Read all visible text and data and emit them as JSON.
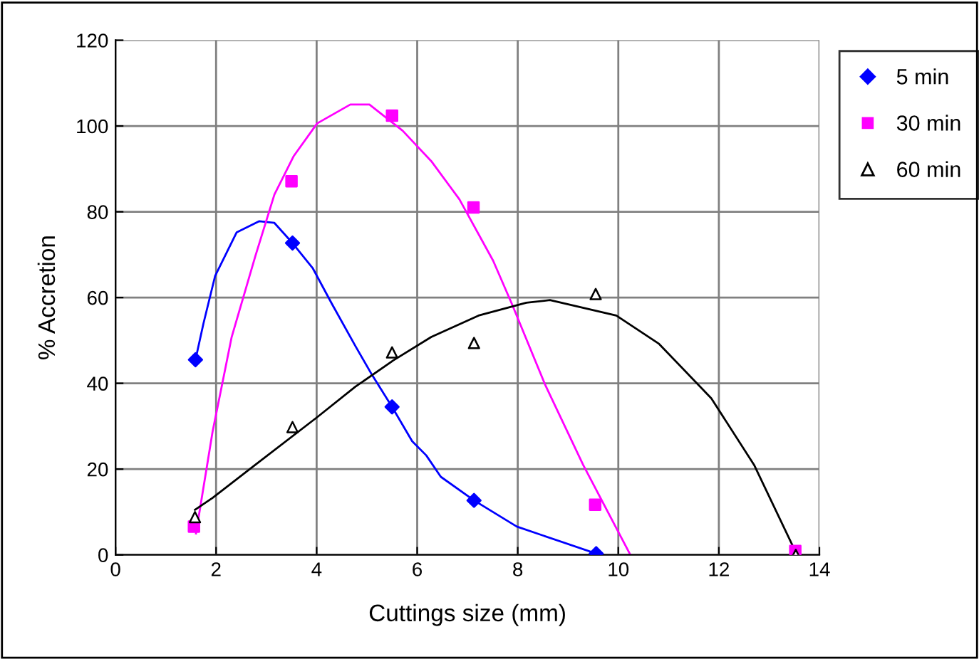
{
  "chart_data": {
    "type": "scatter",
    "xlabel": "Cuttings size (mm)",
    "ylabel": "% Accretion",
    "xlim": [
      0,
      14
    ],
    "xticks": [
      0,
      2,
      4,
      6,
      8,
      10,
      12,
      14
    ],
    "ylim": [
      0,
      120
    ],
    "yticks": [
      0,
      20,
      40,
      60,
      80,
      100,
      120
    ],
    "grid": true,
    "legend": "right",
    "series": [
      {
        "name": "5 min",
        "marker": "diamond",
        "color": "#0000ff",
        "x": [
          1.59,
          3.52,
          5.5,
          7.13,
          9.56
        ],
        "values": [
          45.5,
          72.7,
          34.5,
          12.7,
          0.3
        ]
      },
      {
        "name": "30 min",
        "marker": "square",
        "color": "#ff00ff",
        "x": [
          1.56,
          3.5,
          5.5,
          7.12,
          9.54,
          13.52
        ],
        "values": [
          6.6,
          87.1,
          102.4,
          81.0,
          11.7,
          0.9
        ]
      },
      {
        "name": "60 min",
        "marker": "triangle",
        "color": "#000000",
        "x": [
          1.58,
          3.52,
          5.5,
          7.13,
          9.55,
          13.53
        ],
        "values": [
          8.8,
          29.8,
          47.2,
          49.4,
          60.8,
          0
        ]
      },
      {
        "type": "line",
        "marker": "none",
        "color": "#0000ff",
        "x": [
          1.59,
          1.75,
          1.98,
          2.41,
          2.86,
          3.16,
          3.52,
          3.92,
          4.3,
          4.77,
          5.1,
          5.5,
          5.9,
          6.18,
          6.47,
          7.13,
          7.98,
          9.56
        ],
        "values": [
          45.5,
          54,
          65,
          75.2,
          77.8,
          77.4,
          72.7,
          66.9,
          58.6,
          48.7,
          42,
          34.5,
          26.5,
          23.2,
          18.2,
          12.7,
          6.6,
          0.3
        ]
      },
      {
        "type": "line",
        "marker": "none",
        "color": "#ff00ff",
        "x": [
          1.6,
          1.93,
          2.31,
          2.78,
          3.16,
          3.54,
          4.01,
          4.67,
          5.05,
          5.71,
          6.28,
          6.84,
          7.51,
          7.88,
          8.54,
          9.3,
          10.24
        ],
        "values": [
          5,
          28.7,
          50.8,
          69.6,
          84,
          92.9,
          100.6,
          105,
          105,
          98.9,
          91.8,
          82.9,
          68.6,
          58.6,
          39.8,
          21,
          0
        ]
      },
      {
        "type": "line",
        "marker": "none",
        "color": "#000000",
        "x": [
          1.58,
          1.93,
          2.78,
          4.01,
          4.77,
          5.52,
          6.28,
          7.22,
          8.17,
          8.64,
          9.96,
          10.81,
          11.85,
          12.7,
          13.53
        ],
        "values": [
          10.5,
          13.3,
          21,
          32.1,
          39.2,
          45.3,
          50.8,
          55.8,
          58.8,
          59.4,
          55.8,
          49.2,
          36.5,
          21,
          0.6
        ]
      }
    ]
  }
}
